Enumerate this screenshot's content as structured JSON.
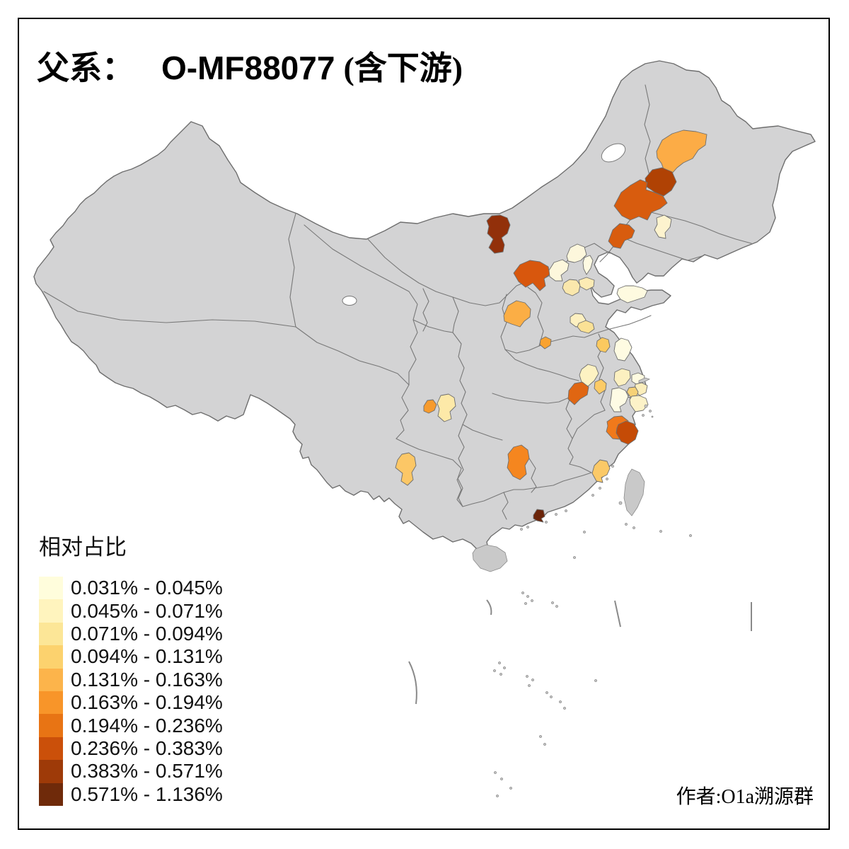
{
  "title": {
    "prefix": "父系：",
    "code": "O-MF88077",
    "suffix": "(含下游)"
  },
  "author": {
    "text": "作者:O1a溯源群"
  },
  "legend": {
    "title": "相对占比",
    "items": [
      {
        "range": "0.031% - 0.045%",
        "color": "#FFFDDC"
      },
      {
        "range": "0.045% - 0.071%",
        "color": "#FFF4BE"
      },
      {
        "range": "0.071% - 0.094%",
        "color": "#FCE697"
      },
      {
        "range": "0.094% - 0.131%",
        "color": "#FCD26E"
      },
      {
        "range": "0.131% - 0.163%",
        "color": "#FCB44B"
      },
      {
        "range": "0.163% - 0.194%",
        "color": "#F89529"
      },
      {
        "range": "0.194% - 0.236%",
        "color": "#E87414"
      },
      {
        "range": "0.236% - 0.383%",
        "color": "#CB500A"
      },
      {
        "range": "0.383% - 0.571%",
        "color": "#9E3A08"
      },
      {
        "range": "0.571% - 1.136%",
        "color": "#6F2A0A"
      }
    ]
  },
  "map": {
    "land_fill": "#D3D3D4",
    "border_color": "#787878",
    "background": "#FFFFFF",
    "frame_color": "#000000",
    "regions": {
      "r1": {
        "fill": "#FCAC46"
      },
      "r2": {
        "fill": "#B04204"
      },
      "r3": {
        "fill": "#D85C0E"
      },
      "r4": {
        "fill": "#D85C0E"
      },
      "r5": {
        "fill": "#FDF3CE"
      },
      "r6": {
        "fill": "#92300A"
      },
      "r7": {
        "fill": "#D8570D"
      },
      "r8": {
        "fill": "#FBAE45"
      },
      "r9": {
        "fill": "#FDF7DC"
      },
      "r10": {
        "fill": "#FDF7DC"
      },
      "r11": {
        "fill": "#FEFAE2"
      },
      "r12": {
        "fill": "#FAE7AC"
      },
      "r13": {
        "fill": "#FCEBB4"
      },
      "r14": {
        "fill": "#FEFAE0"
      },
      "r15": {
        "fill": "#FDF0C0"
      },
      "r16": {
        "fill": "#FBE195"
      },
      "r17": {
        "fill": "#F9A22F"
      },
      "r18": {
        "fill": "#FBC95F"
      },
      "r19": {
        "fill": "#FEFBE2"
      },
      "r20": {
        "fill": "#FDF2C2"
      },
      "r21": {
        "fill": "#FCCB66"
      },
      "r22": {
        "fill": "#E06612"
      },
      "r23": {
        "fill": "#FCF0C0"
      },
      "r24": {
        "fill": "#FEFAE0"
      },
      "r25": {
        "fill": "#FBEEBC"
      },
      "r26": {
        "fill": "#F6D176"
      },
      "r27": {
        "fill": "#FCF2C8"
      },
      "r28": {
        "fill": "#FEFBE4"
      },
      "r29": {
        "fill": "#F0791B"
      },
      "r30": {
        "fill": "#C54B06"
      },
      "r31": {
        "fill": "#F79B2D"
      },
      "r32": {
        "fill": "#FDE9A8"
      },
      "r33": {
        "fill": "#FCC766"
      },
      "r34": {
        "fill": "#F5861F"
      },
      "r35": {
        "fill": "#FBC967"
      },
      "r36": {
        "fill": "#6B2409"
      }
    }
  }
}
